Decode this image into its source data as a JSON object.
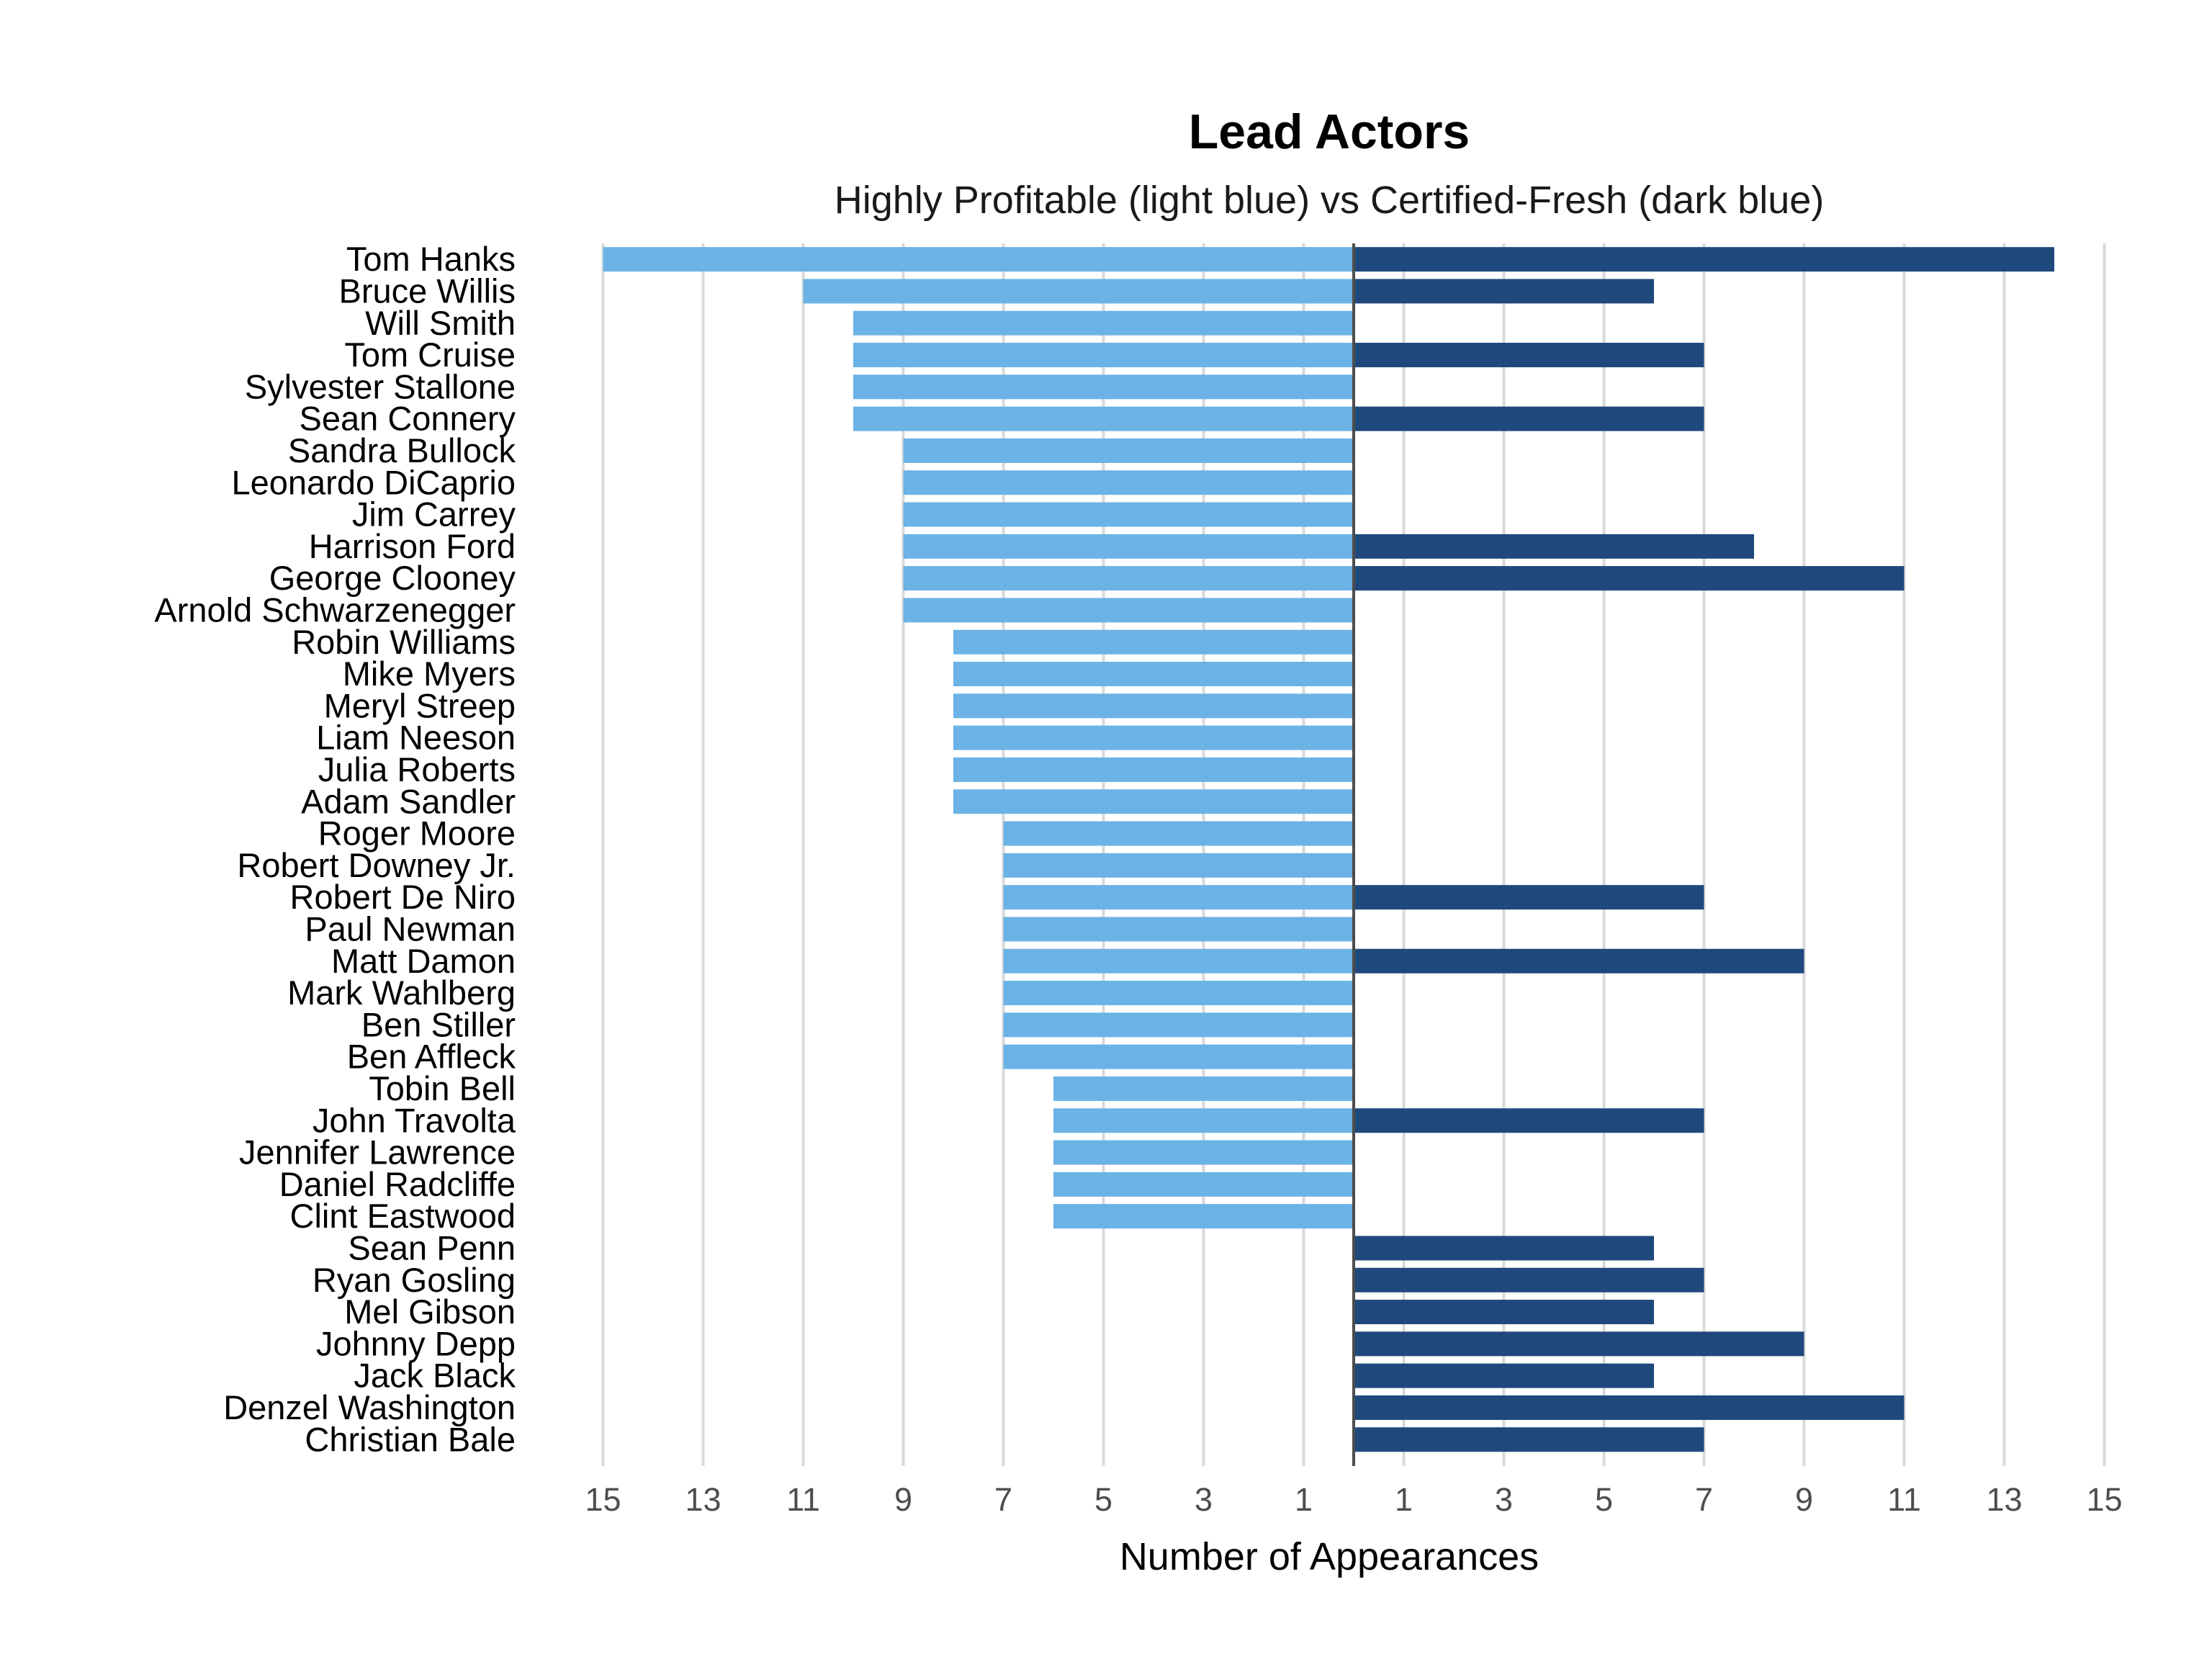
{
  "chart_data": {
    "type": "bar",
    "title": "Lead Actors",
    "subtitle": "Highly Profitable (light blue) vs Certified-Fresh (dark blue)",
    "xlabel": "Number of Appearances",
    "ylabel": "",
    "xlim": [
      -15,
      15
    ],
    "x_ticks": [
      -15,
      -13,
      -11,
      -9,
      -7,
      -5,
      -3,
      -1,
      1,
      3,
      5,
      7,
      9,
      11,
      13,
      15
    ],
    "x_tick_labels": [
      "15",
      "13",
      "11",
      "9",
      "7",
      "5",
      "3",
      "1",
      "1",
      "3",
      "5",
      "7",
      "9",
      "11",
      "13",
      "15"
    ],
    "grid": true,
    "legend": "none",
    "categories": [
      "Tom Hanks",
      "Bruce Willis",
      "Will Smith",
      "Tom Cruise",
      "Sylvester Stallone",
      "Sean Connery",
      "Sandra Bullock",
      "Leonardo DiCaprio",
      "Jim Carrey",
      "Harrison Ford",
      "George Clooney",
      "Arnold Schwarzenegger",
      "Robin Williams",
      "Mike Myers",
      "Meryl Streep",
      "Liam Neeson",
      "Julia Roberts",
      "Adam Sandler",
      "Roger Moore",
      "Robert Downey Jr.",
      "Robert De Niro",
      "Paul Newman",
      "Matt Damon",
      "Mark Wahlberg",
      "Ben Stiller",
      "Ben Affleck",
      "Tobin Bell",
      "John Travolta",
      "Jennifer Lawrence",
      "Daniel Radcliffe",
      "Clint Eastwood",
      "Sean Penn",
      "Ryan Gosling",
      "Mel Gibson",
      "Johnny Depp",
      "Jack Black",
      "Denzel Washington",
      "Christian Bale"
    ],
    "series": [
      {
        "color": "#6bb3e6",
        "values": [
          15,
          11,
          10,
          10,
          10,
          10,
          9,
          9,
          9,
          9,
          9,
          9,
          8,
          8,
          8,
          8,
          8,
          8,
          7,
          7,
          7,
          7,
          7,
          7,
          7,
          7,
          6,
          6,
          6,
          6,
          6,
          0,
          0,
          0,
          0,
          0,
          0,
          0
        ]
      },
      {
        "color": "#1f497d",
        "values": [
          14,
          6,
          0,
          7,
          0,
          7,
          0,
          0,
          0,
          8,
          11,
          0,
          0,
          0,
          0,
          0,
          0,
          0,
          0,
          0,
          7,
          0,
          9,
          0,
          0,
          0,
          0,
          7,
          0,
          0,
          0,
          6,
          7,
          6,
          9,
          6,
          11,
          7
        ]
      }
    ]
  }
}
